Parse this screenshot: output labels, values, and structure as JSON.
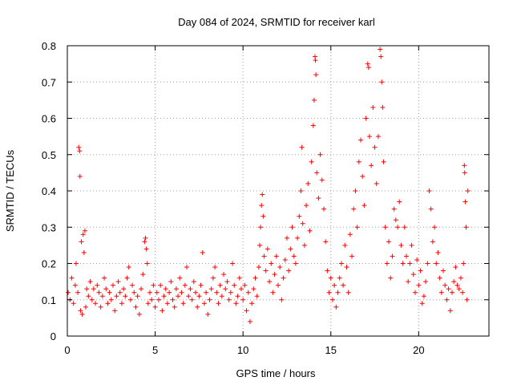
{
  "chart_data": {
    "type": "scatter",
    "title": "Day 084 of 2024, SRMTID for receiver karl",
    "xlabel": "GPS time / hours",
    "ylabel": "SRMTID / TECUs",
    "xlim": [
      0,
      24
    ],
    "ylim": [
      0,
      0.8
    ],
    "xticks": [
      0,
      5,
      10,
      15,
      20
    ],
    "xtick_labels": [
      "0",
      "5",
      "10",
      "15",
      "20"
    ],
    "yticks": [
      0,
      0.1,
      0.2,
      0.3,
      0.4,
      0.5,
      0.6,
      0.7,
      0.8
    ],
    "ytick_labels": [
      "0",
      "0.1",
      "0.2",
      "0.3",
      "0.4",
      "0.5",
      "0.6",
      "0.7",
      "0.8"
    ],
    "grid": true,
    "marker": "+",
    "marker_color": "#ff0000",
    "series": [
      {
        "name": "SRMTID",
        "points": [
          [
            0.05,
            0.12
          ],
          [
            0.15,
            0.1
          ],
          [
            0.25,
            0.16
          ],
          [
            0.35,
            0.09
          ],
          [
            0.45,
            0.14
          ],
          [
            0.5,
            0.2
          ],
          [
            0.6,
            0.12
          ],
          [
            0.65,
            0.52
          ],
          [
            0.7,
            0.51
          ],
          [
            0.72,
            0.44
          ],
          [
            0.75,
            0.07
          ],
          [
            0.8,
            0.26
          ],
          [
            0.85,
            0.06
          ],
          [
            0.9,
            0.28
          ],
          [
            0.95,
            0.23
          ],
          [
            1.0,
            0.29
          ],
          [
            1.05,
            0.08
          ],
          [
            1.1,
            0.13
          ],
          [
            1.2,
            0.11
          ],
          [
            1.3,
            0.15
          ],
          [
            1.4,
            0.1
          ],
          [
            1.5,
            0.13
          ],
          [
            1.6,
            0.09
          ],
          [
            1.7,
            0.14
          ],
          [
            1.8,
            0.12
          ],
          [
            1.9,
            0.08
          ],
          [
            2.0,
            0.11
          ],
          [
            2.1,
            0.16
          ],
          [
            2.2,
            0.13
          ],
          [
            2.3,
            0.09
          ],
          [
            2.4,
            0.12
          ],
          [
            2.5,
            0.1
          ],
          [
            2.6,
            0.14
          ],
          [
            2.7,
            0.07
          ],
          [
            2.8,
            0.11
          ],
          [
            2.9,
            0.15
          ],
          [
            3.0,
            0.12
          ],
          [
            3.1,
            0.09
          ],
          [
            3.2,
            0.13
          ],
          [
            3.3,
            0.11
          ],
          [
            3.4,
            0.16
          ],
          [
            3.5,
            0.19
          ],
          [
            3.6,
            0.1
          ],
          [
            3.7,
            0.14
          ],
          [
            3.8,
            0.12
          ],
          [
            3.9,
            0.08
          ],
          [
            4.0,
            0.11
          ],
          [
            4.1,
            0.06
          ],
          [
            4.2,
            0.13
          ],
          [
            4.3,
            0.17
          ],
          [
            4.4,
            0.26
          ],
          [
            4.45,
            0.27
          ],
          [
            4.5,
            0.24
          ],
          [
            4.55,
            0.2
          ],
          [
            4.6,
            0.09
          ],
          [
            4.7,
            0.12
          ],
          [
            4.8,
            0.1
          ],
          [
            4.9,
            0.14
          ],
          [
            5.0,
            0.08
          ],
          [
            5.1,
            0.12
          ],
          [
            5.2,
            0.1
          ],
          [
            5.3,
            0.14
          ],
          [
            5.4,
            0.07
          ],
          [
            5.5,
            0.11
          ],
          [
            5.6,
            0.13
          ],
          [
            5.7,
            0.09
          ],
          [
            5.8,
            0.12
          ],
          [
            5.9,
            0.15
          ],
          [
            6.0,
            0.1
          ],
          [
            6.1,
            0.08
          ],
          [
            6.2,
            0.13
          ],
          [
            6.3,
            0.11
          ],
          [
            6.4,
            0.16
          ],
          [
            6.5,
            0.12
          ],
          [
            6.6,
            0.09
          ],
          [
            6.7,
            0.14
          ],
          [
            6.8,
            0.19
          ],
          [
            6.9,
            0.11
          ],
          [
            7.0,
            0.13
          ],
          [
            7.1,
            0.1
          ],
          [
            7.2,
            0.15
          ],
          [
            7.3,
            0.12
          ],
          [
            7.4,
            0.08
          ],
          [
            7.5,
            0.11
          ],
          [
            7.6,
            0.14
          ],
          [
            7.7,
            0.23
          ],
          [
            7.8,
            0.09
          ],
          [
            7.9,
            0.12
          ],
          [
            8.0,
            0.06
          ],
          [
            8.1,
            0.1
          ],
          [
            8.2,
            0.13
          ],
          [
            8.3,
            0.16
          ],
          [
            8.4,
            0.19
          ],
          [
            8.5,
            0.12
          ],
          [
            8.6,
            0.09
          ],
          [
            8.7,
            0.14
          ],
          [
            8.8,
            0.11
          ],
          [
            8.9,
            0.17
          ],
          [
            9.0,
            0.13
          ],
          [
            9.1,
            0.15
          ],
          [
            9.2,
            0.1
          ],
          [
            9.3,
            0.12
          ],
          [
            9.4,
            0.2
          ],
          [
            9.5,
            0.14
          ],
          [
            9.6,
            0.09
          ],
          [
            9.7,
            0.11
          ],
          [
            9.8,
            0.16
          ],
          [
            9.9,
            0.13
          ],
          [
            10.0,
            0.1
          ],
          [
            10.1,
            0.14
          ],
          [
            10.2,
            0.07
          ],
          [
            10.3,
            0.12
          ],
          [
            10.4,
            0.04
          ],
          [
            10.5,
            0.09
          ],
          [
            10.6,
            0.13
          ],
          [
            10.7,
            0.16
          ],
          [
            10.8,
            0.11
          ],
          [
            10.9,
            0.19
          ],
          [
            10.95,
            0.25
          ],
          [
            11.0,
            0.3
          ],
          [
            11.05,
            0.36
          ],
          [
            11.1,
            0.39
          ],
          [
            11.15,
            0.33
          ],
          [
            11.2,
            0.22
          ],
          [
            11.3,
            0.18
          ],
          [
            11.4,
            0.24
          ],
          [
            11.5,
            0.15
          ],
          [
            11.6,
            0.2
          ],
          [
            11.7,
            0.12
          ],
          [
            11.8,
            0.17
          ],
          [
            11.9,
            0.22
          ],
          [
            12.0,
            0.14
          ],
          [
            12.1,
            0.19
          ],
          [
            12.2,
            0.1
          ],
          [
            12.3,
            0.16
          ],
          [
            12.4,
            0.21
          ],
          [
            12.5,
            0.27
          ],
          [
            12.6,
            0.18
          ],
          [
            12.7,
            0.24
          ],
          [
            12.8,
            0.3
          ],
          [
            12.9,
            0.22
          ],
          [
            13.0,
            0.2
          ],
          [
            13.1,
            0.27
          ],
          [
            13.2,
            0.33
          ],
          [
            13.3,
            0.4
          ],
          [
            13.35,
            0.52
          ],
          [
            13.4,
            0.31
          ],
          [
            13.5,
            0.25
          ],
          [
            13.6,
            0.36
          ],
          [
            13.7,
            0.42
          ],
          [
            13.8,
            0.29
          ],
          [
            13.9,
            0.48
          ],
          [
            14.0,
            0.58
          ],
          [
            14.05,
            0.65
          ],
          [
            14.1,
            0.77
          ],
          [
            14.12,
            0.76
          ],
          [
            14.15,
            0.72
          ],
          [
            14.2,
            0.45
          ],
          [
            14.3,
            0.38
          ],
          [
            14.4,
            0.5
          ],
          [
            14.5,
            0.43
          ],
          [
            14.6,
            0.35
          ],
          [
            14.7,
            0.26
          ],
          [
            14.8,
            0.18
          ],
          [
            14.9,
            0.12
          ],
          [
            15.0,
            0.16
          ],
          [
            15.1,
            0.1
          ],
          [
            15.2,
            0.14
          ],
          [
            15.3,
            0.08
          ],
          [
            15.4,
            0.12
          ],
          [
            15.5,
            0.16
          ],
          [
            15.6,
            0.2
          ],
          [
            15.7,
            0.14
          ],
          [
            15.8,
            0.25
          ],
          [
            15.9,
            0.19
          ],
          [
            16.0,
            0.12
          ],
          [
            16.1,
            0.28
          ],
          [
            16.2,
            0.22
          ],
          [
            16.3,
            0.35
          ],
          [
            16.4,
            0.4
          ],
          [
            16.5,
            0.3
          ],
          [
            16.6,
            0.48
          ],
          [
            16.7,
            0.54
          ],
          [
            16.8,
            0.44
          ],
          [
            16.9,
            0.36
          ],
          [
            17.0,
            0.6
          ],
          [
            17.1,
            0.75
          ],
          [
            17.15,
            0.74
          ],
          [
            17.2,
            0.55
          ],
          [
            17.3,
            0.47
          ],
          [
            17.4,
            0.63
          ],
          [
            17.5,
            0.52
          ],
          [
            17.6,
            0.42
          ],
          [
            17.7,
            0.55
          ],
          [
            17.8,
            0.79
          ],
          [
            17.85,
            0.77
          ],
          [
            17.9,
            0.7
          ],
          [
            17.95,
            0.63
          ],
          [
            18.0,
            0.48
          ],
          [
            18.1,
            0.3
          ],
          [
            18.2,
            0.2
          ],
          [
            18.3,
            0.26
          ],
          [
            18.4,
            0.16
          ],
          [
            18.5,
            0.22
          ],
          [
            18.6,
            0.35
          ],
          [
            18.7,
            0.32
          ],
          [
            18.8,
            0.3
          ],
          [
            18.9,
            0.37
          ],
          [
            19.0,
            0.25
          ],
          [
            19.1,
            0.2
          ],
          [
            19.2,
            0.3
          ],
          [
            19.3,
            0.22
          ],
          [
            19.4,
            0.15
          ],
          [
            19.5,
            0.2
          ],
          [
            19.6,
            0.25
          ],
          [
            19.7,
            0.17
          ],
          [
            19.8,
            0.12
          ],
          [
            19.9,
            0.21
          ],
          [
            20.0,
            0.14
          ],
          [
            20.1,
            0.18
          ],
          [
            20.2,
            0.09
          ],
          [
            20.3,
            0.11
          ],
          [
            20.4,
            0.15
          ],
          [
            20.5,
            0.2
          ],
          [
            20.6,
            0.4
          ],
          [
            20.7,
            0.35
          ],
          [
            20.8,
            0.26
          ],
          [
            20.9,
            0.3
          ],
          [
            21.0,
            0.2
          ],
          [
            21.1,
            0.23
          ],
          [
            21.2,
            0.16
          ],
          [
            21.3,
            0.12
          ],
          [
            21.4,
            0.18
          ],
          [
            21.5,
            0.14
          ],
          [
            21.6,
            0.1
          ],
          [
            21.7,
            0.13
          ],
          [
            21.8,
            0.07
          ],
          [
            21.9,
            0.12
          ],
          [
            22.0,
            0.15
          ],
          [
            22.1,
            0.19
          ],
          [
            22.2,
            0.14
          ],
          [
            22.3,
            0.13
          ],
          [
            22.4,
            0.16
          ],
          [
            22.5,
            0.12
          ],
          [
            22.55,
            0.2
          ],
          [
            22.6,
            0.47
          ],
          [
            22.62,
            0.45
          ],
          [
            22.65,
            0.37
          ],
          [
            22.7,
            0.3
          ],
          [
            22.75,
            0.1
          ],
          [
            22.8,
            0.4
          ]
        ]
      }
    ]
  }
}
